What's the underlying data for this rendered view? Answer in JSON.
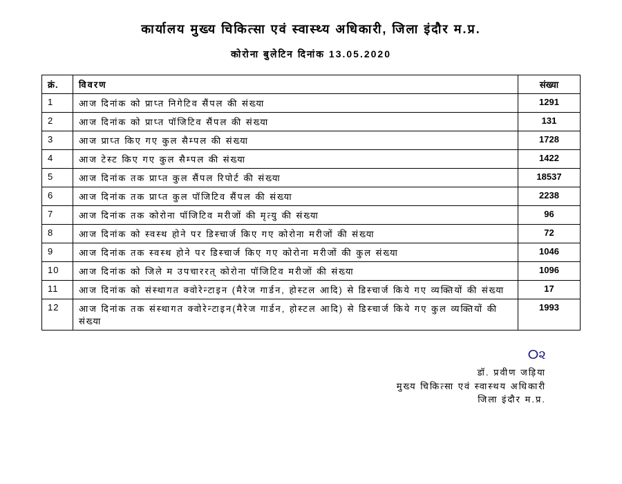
{
  "header": {
    "title": "कार्यालय मुख्य चिकित्सा एवं स्वास्थ्य अधिकारी, जिला इंदौर म.प्र.",
    "subtitle": "कोरोना बुलेटिन दिनांक 13.05.2020"
  },
  "table": {
    "columns": [
      "क्रं.",
      "विवरण",
      "संख्या"
    ],
    "rows": [
      {
        "serial": "1",
        "desc": "आज दिनांक को प्राप्त निगेटिव सैंपल की संख्या",
        "count": "1291"
      },
      {
        "serial": "2",
        "desc": "आज दिनांक को प्राप्त पॉजिटिव सैंपल की संख्या",
        "count": "131"
      },
      {
        "serial": "3",
        "desc": "आज प्राप्त किए गए कुल सैम्पल की संख्या",
        "count": "1728"
      },
      {
        "serial": "4",
        "desc": "आज टेस्ट किए गए कुल सैम्पल की संख्या",
        "count": "1422"
      },
      {
        "serial": "5",
        "desc": "आज दिनांक तक प्राप्त कुल सैंपल रिपोर्ट की संख्या",
        "count": "18537"
      },
      {
        "serial": "6",
        "desc": "आज दिनांक तक प्राप्त कुल पॉजिटिव सैंपल की संख्या",
        "count": "2238"
      },
      {
        "serial": "7",
        "desc": "आज दिनांक तक कोरोना पॉजिटिव मरीजों की मृत्यु की संख्या",
        "count": "96"
      },
      {
        "serial": "8",
        "desc": "आज दिनांक को स्वस्थ होने पर डिस्चार्ज किए गए कोरोना मरीजों की संख्या",
        "count": "72"
      },
      {
        "serial": "9",
        "desc": "आज दिनांक तक स्वस्थ होने पर डिस्चार्ज किए गए कोरोना मरीजों की कुल संख्या",
        "count": "1046"
      },
      {
        "serial": "10",
        "desc": "आज  दिनांक को जिले म उपचाररत् कोरोना पॉजिटिव मरीजों की संख्या",
        "count": "1096"
      },
      {
        "serial": "11",
        "desc": "आज दिनांक को संस्थागत क्वोरेन्टाइन (मैरेज गार्डन, होस्टल आदि) से डिस्चार्ज किये गए व्यक्तियों की संख्या",
        "count": "17"
      },
      {
        "serial": "12",
        "desc": "आज दिनांक तक संस्थागत क्वोरेन्टाइन(मैरेज गार्डन, होस्टल आदि) से डिस्चार्ज किये गए कुल व्यक्तियों की संख्या",
        "count": "1993"
      }
    ],
    "styling": {
      "border_color": "#000000",
      "background_color": "#ffffff",
      "text_color": "#000000",
      "font_size": 13,
      "header_font_weight": "bold",
      "col_serial_width": 45,
      "col_count_width": 90
    }
  },
  "signature": {
    "mark": "ⵔ૨",
    "name": "डॉ. प्रवीण जड़िया",
    "designation": "मुख्य चिकित्सा एवं स्वास्थय अधिकारी",
    "location": "जिला इंदौर म.प्र."
  }
}
